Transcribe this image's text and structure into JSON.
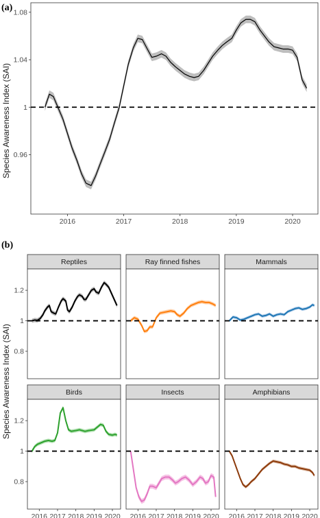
{
  "panel_a": {
    "label": "(a)",
    "ylabel": "Species Awareness Index (SAI)"
  },
  "panel_b": {
    "label": "(b)",
    "ylabel": "Species Awareness Index (SAI)"
  },
  "chart_data": [
    {
      "id": "a",
      "type": "line",
      "title": "",
      "xlabel": "",
      "ylabel": "Species Awareness Index (SAI)",
      "xlim": [
        2015.35,
        2020.45
      ],
      "ylim": [
        0.91,
        1.088
      ],
      "xticks": [
        2016,
        2017,
        2018,
        2019,
        2020
      ],
      "yticks": [
        0.96,
        1,
        1.04,
        1.08
      ],
      "ytick_labels": [
        "0.96",
        "1",
        "1.04",
        "1.08"
      ],
      "reference_line": 1,
      "colors": {
        "line": "#000000",
        "band": "#b3b3b3"
      },
      "series": [
        {
          "x": [
            2015.6,
            2015.68,
            2015.75,
            2015.83,
            2015.92,
            2016.0,
            2016.08,
            2016.17,
            2016.25,
            2016.33,
            2016.42,
            2016.5,
            2016.58,
            2016.67,
            2016.75,
            2016.83,
            2016.92,
            2017.0,
            2017.08,
            2017.17,
            2017.25,
            2017.33,
            2017.42,
            2017.5,
            2017.58,
            2017.67,
            2017.75,
            2017.83,
            2017.92,
            2018.0,
            2018.08,
            2018.17,
            2018.25,
            2018.33,
            2018.42,
            2018.5,
            2018.58,
            2018.67,
            2018.75,
            2018.83,
            2018.92,
            2019.0,
            2019.08,
            2019.17,
            2019.25,
            2019.33,
            2019.42,
            2019.5,
            2019.58,
            2019.67,
            2019.75,
            2019.83,
            2019.92,
            2020.0,
            2020.08,
            2020.17,
            2020.25
          ],
          "y": [
            1.0,
            1.011,
            1.009,
            1.0,
            0.99,
            0.978,
            0.966,
            0.955,
            0.944,
            0.936,
            0.934,
            0.942,
            0.952,
            0.963,
            0.973,
            0.986,
            1.0,
            1.018,
            1.036,
            1.05,
            1.058,
            1.057,
            1.049,
            1.042,
            1.043,
            1.045,
            1.043,
            1.038,
            1.034,
            1.031,
            1.028,
            1.026,
            1.025,
            1.026,
            1.031,
            1.037,
            1.043,
            1.048,
            1.052,
            1.055,
            1.058,
            1.065,
            1.071,
            1.074,
            1.074,
            1.072,
            1.065,
            1.06,
            1.055,
            1.051,
            1.05,
            1.049,
            1.049,
            1.048,
            1.042,
            1.023,
            1.016
          ],
          "band_width": 0.0032
        }
      ]
    },
    {
      "id": "b",
      "type": "line",
      "title": "",
      "ylabel": "Species Awareness Index (SAI)",
      "xlim": [
        2015.35,
        2020.45
      ],
      "ylim": [
        0.62,
        1.34
      ],
      "xticks": [
        2016,
        2017,
        2018,
        2019,
        2020
      ],
      "yticks": [
        0.8,
        1,
        1.2
      ],
      "ytick_labels": [
        "0.8",
        "1",
        "1.2"
      ],
      "reference_line": 1,
      "facets": [
        {
          "name": "Reptiles",
          "color": "#000000",
          "band": "#aaaaaa",
          "x": [
            2015.6,
            2015.75,
            2015.9,
            2016.05,
            2016.2,
            2016.3,
            2016.45,
            2016.55,
            2016.65,
            2016.8,
            2016.9,
            2017.05,
            2017.2,
            2017.3,
            2017.45,
            2017.55,
            2017.65,
            2017.8,
            2017.95,
            2018.1,
            2018.2,
            2018.35,
            2018.45,
            2018.55,
            2018.7,
            2018.85,
            2019.0,
            2019.1,
            2019.25,
            2019.4,
            2019.55,
            2019.65,
            2019.8,
            2019.95,
            2020.1,
            2020.25
          ],
          "y": [
            1.0,
            1.005,
            1.003,
            1.015,
            1.04,
            1.065,
            1.09,
            1.1,
            1.06,
            1.05,
            1.045,
            1.09,
            1.13,
            1.145,
            1.13,
            1.07,
            1.06,
            1.09,
            1.13,
            1.16,
            1.17,
            1.16,
            1.14,
            1.14,
            1.17,
            1.2,
            1.21,
            1.19,
            1.18,
            1.22,
            1.25,
            1.24,
            1.22,
            1.18,
            1.14,
            1.1
          ],
          "band_width": 0.014
        },
        {
          "name": "Ray finned fishes",
          "color": "#ff7f0e",
          "band": "#ffc99a",
          "x": [
            2015.6,
            2015.8,
            2016.0,
            2016.2,
            2016.35,
            2016.5,
            2016.65,
            2016.8,
            2017.0,
            2017.2,
            2017.4,
            2017.6,
            2017.8,
            2018.0,
            2018.15,
            2018.3,
            2018.5,
            2018.7,
            2018.9,
            2019.1,
            2019.3,
            2019.5,
            2019.7,
            2019.9,
            2020.1,
            2020.25
          ],
          "y": [
            1.0,
            1.02,
            1.01,
            0.97,
            0.93,
            0.935,
            0.96,
            0.96,
            1.02,
            1.05,
            1.055,
            1.06,
            1.065,
            1.06,
            1.04,
            1.03,
            1.05,
            1.08,
            1.1,
            1.11,
            1.12,
            1.125,
            1.12,
            1.12,
            1.11,
            1.1
          ],
          "band_width": 0.012
        },
        {
          "name": "Mammals",
          "color": "#1f77b4",
          "band": "#a8c8e8",
          "x": [
            2015.6,
            2015.8,
            2016.0,
            2016.2,
            2016.4,
            2016.6,
            2016.8,
            2017.0,
            2017.2,
            2017.4,
            2017.6,
            2017.8,
            2018.0,
            2018.2,
            2018.4,
            2018.6,
            2018.8,
            2019.0,
            2019.2,
            2019.4,
            2019.6,
            2019.8,
            2020.0,
            2020.15,
            2020.25
          ],
          "y": [
            1.0,
            1.025,
            1.02,
            1.005,
            1.01,
            1.02,
            1.03,
            1.04,
            1.045,
            1.03,
            1.035,
            1.045,
            1.03,
            1.04,
            1.045,
            1.04,
            1.06,
            1.07,
            1.08,
            1.085,
            1.075,
            1.08,
            1.09,
            1.105,
            1.1
          ],
          "band_width": 0.01
        },
        {
          "name": "Birds",
          "color": "#2ca02c",
          "band": "#a6dca6",
          "x": [
            2015.6,
            2015.75,
            2015.9,
            2016.1,
            2016.3,
            2016.5,
            2016.7,
            2016.85,
            2017.0,
            2017.15,
            2017.3,
            2017.45,
            2017.6,
            2017.75,
            2018.0,
            2018.2,
            2018.5,
            2018.7,
            2019.0,
            2019.2,
            2019.35,
            2019.5,
            2019.65,
            2019.8,
            2020.0,
            2020.15,
            2020.25
          ],
          "y": [
            1.0,
            1.03,
            1.045,
            1.055,
            1.065,
            1.07,
            1.065,
            1.07,
            1.12,
            1.25,
            1.285,
            1.2,
            1.14,
            1.13,
            1.135,
            1.14,
            1.13,
            1.135,
            1.14,
            1.16,
            1.175,
            1.17,
            1.13,
            1.11,
            1.105,
            1.11,
            1.105
          ],
          "band_width": 0.012
        },
        {
          "name": "Insects",
          "color": "#e377c2",
          "band": "#f5b8e0",
          "x": [
            2015.6,
            2015.75,
            2015.9,
            2016.05,
            2016.2,
            2016.35,
            2016.5,
            2016.65,
            2016.8,
            2017.0,
            2017.15,
            2017.3,
            2017.5,
            2017.7,
            2017.9,
            2018.05,
            2018.2,
            2018.4,
            2018.6,
            2018.8,
            2019.0,
            2019.2,
            2019.4,
            2019.55,
            2019.7,
            2019.85,
            2020.0,
            2020.15,
            2020.25
          ],
          "y": [
            1.0,
            0.88,
            0.76,
            0.7,
            0.67,
            0.68,
            0.72,
            0.77,
            0.77,
            0.76,
            0.79,
            0.82,
            0.83,
            0.83,
            0.81,
            0.79,
            0.8,
            0.82,
            0.83,
            0.81,
            0.78,
            0.8,
            0.83,
            0.82,
            0.79,
            0.8,
            0.84,
            0.83,
            0.7
          ],
          "band_width": 0.016
        },
        {
          "name": "Amphibians",
          "color": "#8c3a0b",
          "band": "#d4a88c",
          "x": [
            2015.6,
            2015.75,
            2015.9,
            2016.05,
            2016.2,
            2016.35,
            2016.5,
            2016.65,
            2016.8,
            2017.0,
            2017.2,
            2017.4,
            2017.6,
            2017.8,
            2018.0,
            2018.2,
            2018.4,
            2018.6,
            2018.8,
            2019.0,
            2019.2,
            2019.4,
            2019.6,
            2019.8,
            2020.0,
            2020.15,
            2020.25
          ],
          "y": [
            1.0,
            0.97,
            0.92,
            0.87,
            0.82,
            0.78,
            0.765,
            0.78,
            0.8,
            0.82,
            0.85,
            0.88,
            0.9,
            0.92,
            0.935,
            0.93,
            0.925,
            0.915,
            0.91,
            0.9,
            0.9,
            0.89,
            0.885,
            0.88,
            0.875,
            0.86,
            0.84
          ],
          "band_width": 0.01
        }
      ]
    }
  ]
}
